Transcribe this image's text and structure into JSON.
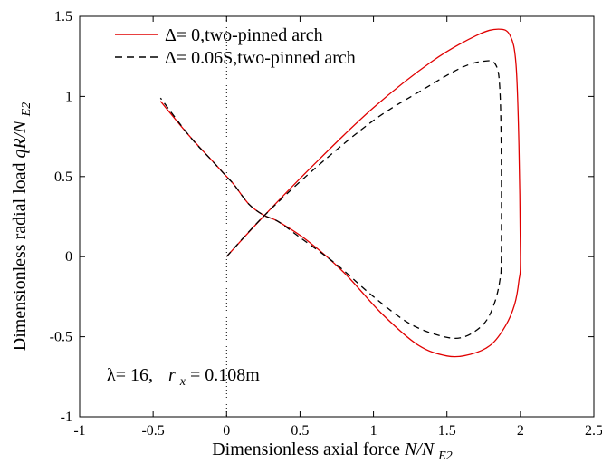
{
  "chart_data": {
    "type": "line",
    "xlabel_prefix": "Dimensionless axial force ",
    "xlabel_var": "N/N",
    "xlabel_sub": "E2",
    "ylabel_prefix": "Dimensionless radial load ",
    "ylabel_var": "qR/N",
    "ylabel_sub": "E2",
    "xlim": [
      -1,
      2.5
    ],
    "ylim": [
      -1,
      1.5
    ],
    "xticks": [
      -1,
      -0.5,
      0,
      0.5,
      1,
      1.5,
      2,
      2.5
    ],
    "xtick_labels": [
      "-1",
      "-0.5",
      "0",
      "0.5",
      "1",
      "1.5",
      "2",
      "2.5"
    ],
    "yticks": [
      -1,
      -0.5,
      0,
      0.5,
      1,
      1.5
    ],
    "ytick_labels": [
      "-1",
      "-0.5",
      "0",
      "0.5",
      "1",
      "1.5"
    ],
    "grid": false,
    "legend_position": "top-left",
    "annotation": {
      "lambda_text": "λ= 16,",
      "r_var": "r",
      "r_sub": "x",
      "r_value": "= 0.108m"
    },
    "series": [
      {
        "name": "Δ= 0,two-pinned arch",
        "color": "#e00000",
        "dash": "solid",
        "x": [
          0.0,
          0.25,
          0.6,
          1.0,
          1.4,
          1.7,
          1.85,
          1.93,
          1.97,
          1.99,
          2.0,
          1.99,
          1.96,
          1.9,
          1.8,
          1.66,
          1.5,
          1.3,
          1.05,
          0.8,
          0.55,
          0.35,
          0.25,
          0.15,
          0.05,
          0.0,
          -0.1,
          -0.25,
          -0.45
        ],
        "y": [
          0.0,
          0.25,
          0.58,
          0.93,
          1.22,
          1.38,
          1.42,
          1.38,
          1.2,
          0.7,
          0.0,
          -0.15,
          -0.3,
          -0.43,
          -0.55,
          -0.61,
          -0.62,
          -0.55,
          -0.35,
          -0.1,
          0.1,
          0.22,
          0.26,
          0.33,
          0.45,
          0.5,
          0.6,
          0.75,
          0.97
        ]
      },
      {
        "name": "Δ= 0.06S,two-pinned arch",
        "color": "#000000",
        "dash": "dashed",
        "x": [
          0.0,
          0.25,
          0.6,
          1.0,
          1.35,
          1.6,
          1.75,
          1.83,
          1.86,
          1.87,
          1.87,
          1.86,
          1.82,
          1.75,
          1.62,
          1.48,
          1.25,
          1.0,
          0.75,
          0.5,
          0.35,
          0.25,
          0.15,
          0.05,
          0.0,
          -0.1,
          -0.25,
          -0.45
        ],
        "y": [
          0.0,
          0.25,
          0.55,
          0.85,
          1.05,
          1.18,
          1.22,
          1.2,
          1.05,
          0.6,
          0.0,
          -0.15,
          -0.3,
          -0.42,
          -0.5,
          -0.5,
          -0.42,
          -0.25,
          -0.05,
          0.12,
          0.22,
          0.26,
          0.33,
          0.45,
          0.5,
          0.6,
          0.75,
          0.99
        ]
      }
    ]
  }
}
